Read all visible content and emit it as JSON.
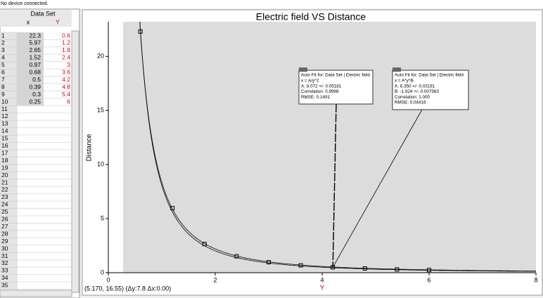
{
  "status": "No device connected.",
  "table": {
    "title": "Data Set",
    "columns": [
      "x",
      "Y"
    ],
    "row_numbers": [
      1,
      2,
      3,
      4,
      5,
      6,
      7,
      8,
      9,
      10,
      11,
      12,
      13,
      14,
      15,
      16,
      17,
      18,
      19,
      20,
      21,
      22,
      23,
      24,
      25,
      26,
      27,
      28,
      29,
      30,
      31,
      32,
      33,
      34,
      35
    ]
  },
  "chart_data": {
    "type": "scatter",
    "title": "Electric field VS Distance",
    "x_label": "Y",
    "y_label": "Distance",
    "x": [
      0.6,
      1.2,
      1.8,
      2.4,
      3,
      3.6,
      4.2,
      4.8,
      5.4,
      6
    ],
    "series": [
      {
        "name": "Data Set",
        "color": "#000000",
        "values": [
          22.3,
          5.97,
          2.65,
          1.52,
          0.97,
          0.68,
          0.5,
          0.39,
          0.3,
          0.25
        ]
      }
    ],
    "xlim": [
      0,
      8
    ],
    "ylim": [
      0,
      23.2
    ],
    "xticks": [
      0,
      2,
      4,
      6,
      8
    ],
    "yticks": [
      0,
      5,
      10,
      15,
      20
    ],
    "fits": [
      {
        "A": 8.072,
        "B": -2,
        "lines": [
          "Auto Fit for: Data Set | Electric field",
          "x = A/y^2",
          "A: 8.072 +/- 0.05181",
          "Correlation: 0.9998",
          "RMSE: 0.1491"
        ]
      },
      {
        "A": 8.35,
        "B": -1.924,
        "lines": [
          "Auto Fit for: Data Set | Electric field",
          "x = A*y^B",
          "A: 8.350 +/- 0.03191",
          "B: -1.924 +/- 0.007563",
          "Correlation: 1.000",
          "RMSE: 0.04416"
        ]
      }
    ],
    "cursor": "(5.170, 16.55) (Δy:7.8 Δx:0.00)"
  }
}
